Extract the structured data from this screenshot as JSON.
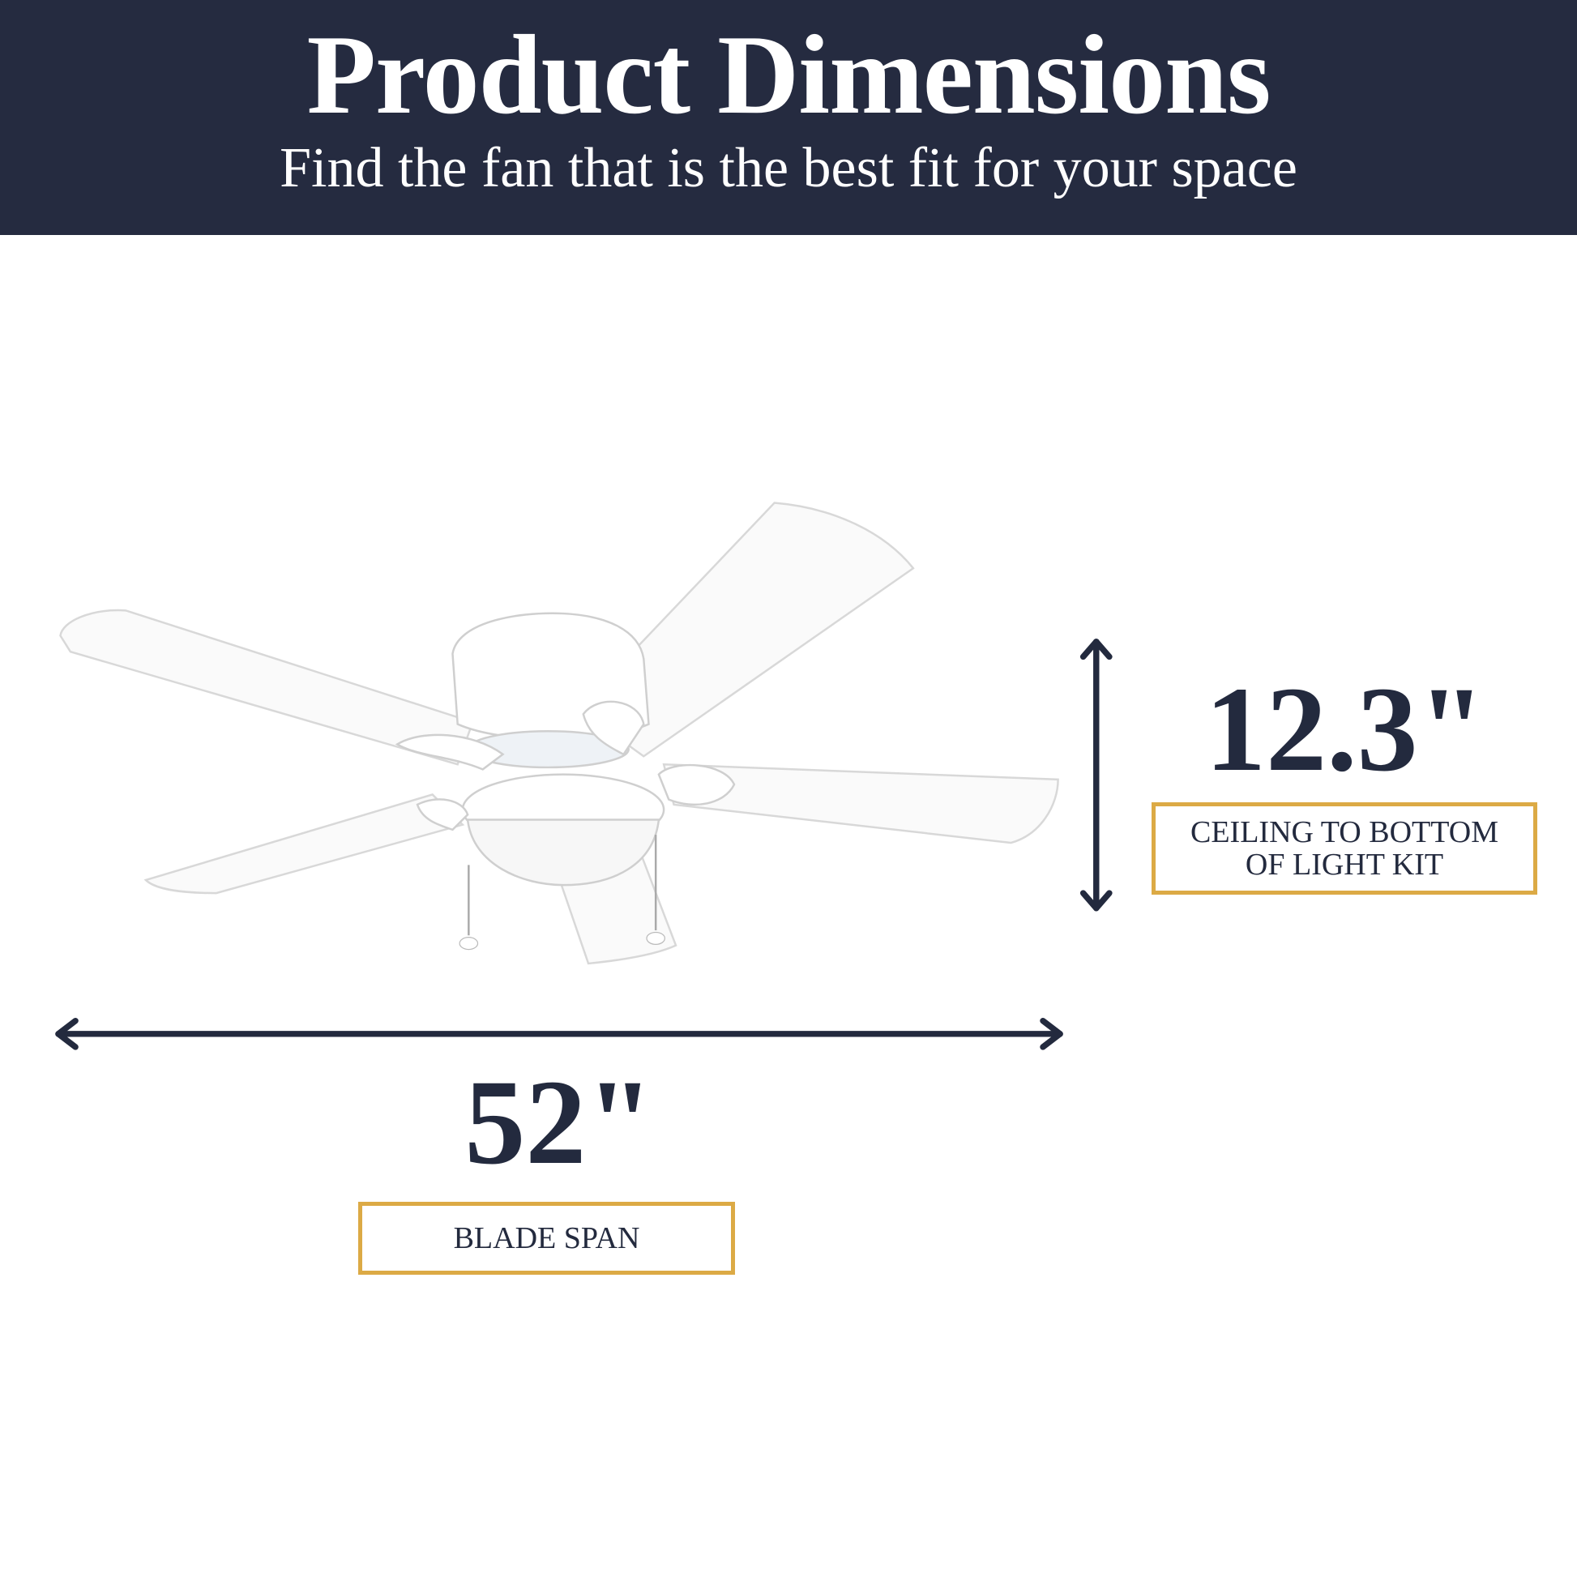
{
  "header": {
    "title": "Product Dimensions",
    "subtitle": "Find the fan that is the best fit for your space"
  },
  "height_dimension": {
    "value": "12.3\"",
    "label_line1": "CEILING TO BOTTOM",
    "label_line2": "OF LIGHT KIT"
  },
  "width_dimension": {
    "value": "52\"",
    "label": "BLADE SPAN"
  },
  "colors": {
    "navy": "#252b40",
    "gold": "#dcaa45",
    "background": "#ffffff"
  }
}
